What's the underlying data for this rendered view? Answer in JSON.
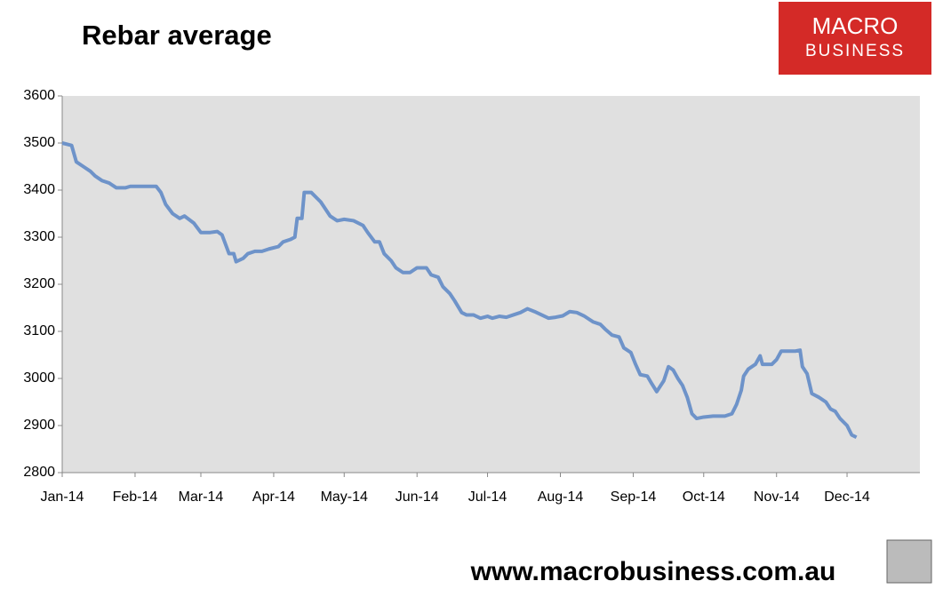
{
  "chart_data": {
    "type": "line",
    "title": "Rebar average",
    "brand": [
      "MACRO",
      "BUSINESS"
    ],
    "footer": "www.macrobusiness.com.au",
    "xlim": [
      0,
      365
    ],
    "xticks": [
      {
        "value": 0,
        "label": "Jan-14"
      },
      {
        "value": 31,
        "label": "Feb-14"
      },
      {
        "value": 59,
        "label": "Mar-14"
      },
      {
        "value": 90,
        "label": "Apr-14"
      },
      {
        "value": 120,
        "label": "May-14"
      },
      {
        "value": 151,
        "label": "Jun-14"
      },
      {
        "value": 181,
        "label": "Jul-14"
      },
      {
        "value": 212,
        "label": "Aug-14"
      },
      {
        "value": 243,
        "label": "Sep-14"
      },
      {
        "value": 273,
        "label": "Oct-14"
      },
      {
        "value": 304,
        "label": "Nov-14"
      },
      {
        "value": 334,
        "label": "Dec-14"
      }
    ],
    "ylim": [
      2800,
      3600
    ],
    "yticks": [
      2800,
      2900,
      3000,
      3100,
      3200,
      3300,
      3400,
      3500,
      3600
    ],
    "x": [
      0,
      4,
      6,
      9,
      12,
      14,
      17,
      20,
      23,
      27,
      29,
      35,
      40,
      42,
      44,
      47,
      50,
      52,
      56,
      59,
      63,
      66,
      68,
      71,
      73,
      74,
      77,
      79,
      82,
      85,
      88,
      92,
      94,
      97,
      99,
      100,
      102,
      103,
      106,
      110,
      114,
      117,
      120,
      124,
      128,
      130,
      133,
      135,
      137,
      140,
      142,
      145,
      148,
      151,
      155,
      157,
      160,
      162,
      165,
      167,
      170,
      172,
      175,
      178,
      181,
      183,
      186,
      189,
      192,
      195,
      198,
      201,
      204,
      207,
      210,
      213,
      216,
      219,
      222,
      226,
      229,
      231,
      234,
      237,
      239,
      242,
      244,
      246,
      249,
      251,
      253,
      256,
      258,
      260,
      262,
      264,
      266,
      268,
      270,
      273,
      277,
      282,
      285,
      287,
      289,
      290,
      292,
      295,
      297,
      298,
      302,
      304,
      306,
      312,
      314,
      315,
      317,
      319,
      322,
      325,
      327,
      329,
      331,
      334,
      336,
      338
    ],
    "series": [
      {
        "color": "#6e93c9",
        "values": [
          3500,
          3495,
          3460,
          3450,
          3440,
          3430,
          3420,
          3415,
          3405,
          3405,
          3408,
          3408,
          3408,
          3395,
          3370,
          3350,
          3340,
          3345,
          3330,
          3310,
          3310,
          3312,
          3305,
          3265,
          3265,
          3248,
          3255,
          3265,
          3270,
          3270,
          3275,
          3280,
          3290,
          3295,
          3300,
          3340,
          3340,
          3395,
          3395,
          3375,
          3345,
          3335,
          3338,
          3335,
          3325,
          3310,
          3290,
          3290,
          3265,
          3250,
          3235,
          3225,
          3225,
          3235,
          3235,
          3220,
          3215,
          3195,
          3180,
          3165,
          3140,
          3135,
          3135,
          3128,
          3132,
          3128,
          3132,
          3130,
          3135,
          3140,
          3148,
          3142,
          3135,
          3128,
          3130,
          3133,
          3142,
          3140,
          3133,
          3120,
          3115,
          3105,
          3092,
          3088,
          3065,
          3055,
          3030,
          3008,
          3005,
          2988,
          2972,
          2995,
          3025,
          3018,
          3000,
          2985,
          2960,
          2925,
          2915,
          2918,
          2920,
          2920,
          2925,
          2945,
          2975,
          3005,
          3020,
          3030,
          3048,
          3030,
          3030,
          3040,
          3058,
          3058,
          3060,
          3025,
          3010,
          2968,
          2960,
          2950,
          2935,
          2930,
          2915,
          2900,
          2880,
          2875
        ]
      }
    ]
  }
}
